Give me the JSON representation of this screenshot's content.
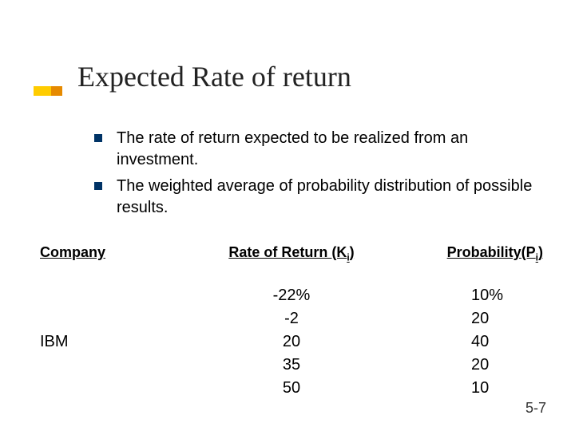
{
  "accent": {
    "outer_color": "#ffcc00",
    "inner_color": "#e68a00"
  },
  "title": "Expected Rate of return",
  "bullets": [
    "The rate of return expected to be realized from an investment.",
    "The weighted average of probability distribution of possible results."
  ],
  "table": {
    "headers": {
      "company": "Company",
      "rate_prefix": "Rate of Return (K",
      "rate_sub": "i",
      "rate_suffix": ")",
      "prob_prefix": "Probability(P",
      "prob_sub": "i",
      "prob_suffix": ")"
    },
    "company_label": "IBM",
    "rows": [
      {
        "rate": "-22%",
        "prob": "10%"
      },
      {
        "rate": "-2",
        "prob": "20"
      },
      {
        "rate": "20",
        "prob": "40"
      },
      {
        "rate": "35",
        "prob": "20"
      },
      {
        "rate": "50",
        "prob": "10"
      }
    ]
  },
  "footer": "5-7",
  "styling": {
    "title_fontsize": 36,
    "bullet_fontsize": 20,
    "header_fontsize": 18,
    "data_fontsize": 20,
    "bullet_marker_color": "#003366",
    "background_color": "#ffffff",
    "text_color": "#000000"
  }
}
